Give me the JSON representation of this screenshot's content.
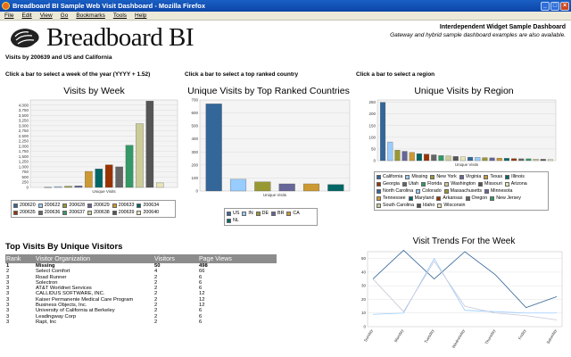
{
  "window": {
    "title": "Breadboard BI Sample Web Visit Dashboard - Mozilla Firefox"
  },
  "menu": [
    "File",
    "Edit",
    "View",
    "Go",
    "Bookmarks",
    "Tools",
    "Help"
  ],
  "header": {
    "logo_text": "Breadboard BI",
    "dashboard_title": "Interdependent Widget Sample Dashboard",
    "dashboard_subtitle": "Gateway and hybrid sample dashboard examples are also available."
  },
  "context_line": "Visits by 200639 and US and California",
  "instructions": {
    "week": "Click a bar to select a week of the year (YYYY + 1.52)",
    "country": "Click a bar to select a top ranked country",
    "region": "Click a bar to select a region"
  },
  "colors": {
    "blue": "#336699",
    "lightblue": "#99ccff",
    "olive": "#999933",
    "purple": "#666699",
    "orange": "#cc9933",
    "teal": "#006666",
    "darkorange": "#993300",
    "gray": "#666666",
    "green": "#339966",
    "darkred": "#993300",
    "lightgreen": "#cccc99",
    "darkgray": "#555555"
  },
  "chart_data": [
    {
      "type": "bar",
      "title": "Visits by Week",
      "xlabel": "Unique Visits",
      "ylabel": "",
      "ylim": [
        0,
        4250
      ],
      "yticks": [
        "0",
        "250",
        "500",
        "750",
        "1,000",
        "1,250",
        "1,500",
        "1,750",
        "2,000",
        "2,250",
        "2,500",
        "2,750",
        "3,000",
        "3,250",
        "3,500",
        "3,750",
        "4,000"
      ],
      "categories": [
        "200620",
        "200622",
        "200628",
        "200629",
        "200633",
        "200634",
        "200635",
        "200636",
        "200637",
        "200638",
        "200639",
        "200640"
      ],
      "values": [
        10,
        40,
        60,
        80,
        780,
        900,
        1100,
        1000,
        2050,
        3100,
        4200,
        220
      ],
      "colors": [
        "#336699",
        "#99ccff",
        "#999933",
        "#666699",
        "#cc9933",
        "#006666",
        "#993300",
        "#666666",
        "#339966",
        "#cccc99",
        "#555555",
        "#e8e4b8"
      ],
      "legend": "bottom"
    },
    {
      "type": "bar",
      "title": "Unique Visits by Top Ranked Countries",
      "xlabel": "Unique Visits",
      "ylabel": "",
      "ylim": [
        0,
        700
      ],
      "yticks": [
        "0",
        "100",
        "200",
        "300",
        "400",
        "500",
        "600",
        "700"
      ],
      "categories": [
        "US",
        "IN",
        "DE",
        "BR",
        "CA",
        "NL"
      ],
      "values": [
        670,
        90,
        70,
        55,
        55,
        50
      ],
      "colors": [
        "#336699",
        "#99ccff",
        "#999933",
        "#666699",
        "#cc9933",
        "#006666"
      ],
      "legend": "bottom"
    },
    {
      "type": "bar",
      "title": "Unique Visits by Region",
      "xlabel": "Unique Visits",
      "ylabel": "",
      "ylim": [
        0,
        260
      ],
      "yticks": [
        "0",
        "50",
        "100",
        "150",
        "200",
        "250"
      ],
      "categories": [
        "California",
        "Missing",
        "New York",
        "Virginia",
        "Texas",
        "Illinois",
        "Georgia",
        "Utah",
        "Florida",
        "Washington",
        "Missouri",
        "Arizona",
        "North Carolina",
        "Colorado",
        "Massachusetts",
        "Minnesota",
        "Tennessee",
        "Maryland",
        "Arkansas",
        "Oregon",
        "New Jersey",
        "South Carolina",
        "Idaho",
        "Wisconsin"
      ],
      "values": [
        250,
        80,
        45,
        40,
        35,
        30,
        28,
        25,
        22,
        20,
        18,
        16,
        15,
        14,
        13,
        12,
        11,
        10,
        9,
        8,
        8,
        7,
        6,
        5
      ],
      "colors": [
        "#336699",
        "#99ccff",
        "#999933",
        "#666699",
        "#cc9933",
        "#006666",
        "#993300",
        "#666666",
        "#339966",
        "#cccc99",
        "#555555",
        "#e8e4b8",
        "#336699",
        "#99ccff",
        "#999933",
        "#666699",
        "#cc9933",
        "#006666",
        "#993300",
        "#666666",
        "#339966",
        "#cccc99",
        "#555555",
        "#e8e4b8"
      ],
      "legend": "bottom"
    },
    {
      "type": "line",
      "title": "Visit Trends For the Week",
      "ylim": [
        0,
        55
      ],
      "yticks": [
        "0",
        "10",
        "20",
        "30",
        "40",
        "50"
      ],
      "categories": [
        "Sunday",
        "Monday",
        "Tuesday",
        "Wednesday",
        "Thursday",
        "Friday",
        "Saturday"
      ],
      "series": [
        {
          "values": [
            35,
            56,
            35,
            55,
            38,
            14,
            22
          ],
          "color": "#336699"
        },
        {
          "values": [
            9,
            10,
            50,
            12,
            11,
            10,
            10
          ],
          "color": "#99ccff"
        },
        {
          "values": [
            35,
            11,
            48,
            15,
            10,
            8,
            5
          ],
          "color": "#c8c8d8"
        }
      ]
    }
  ],
  "visitors_table": {
    "title": "Top Visits By Unique Visitors",
    "columns": [
      "Rank",
      "Visitor Organization",
      "Visitors",
      "Page Views"
    ],
    "rows": [
      [
        "1",
        "Missing",
        "50",
        "498"
      ],
      [
        "2",
        "Select Comfort",
        "4",
        "66"
      ],
      [
        "3",
        "Road Runner",
        "2",
        "6"
      ],
      [
        "3",
        "Solectron",
        "2",
        "6"
      ],
      [
        "3",
        "AT&T Worldnet Services",
        "2",
        "6"
      ],
      [
        "3",
        "CALLIDUS SOFTWARE, INC.",
        "2",
        "12"
      ],
      [
        "3",
        "Kaiser Permanente Medical Care Program",
        "2",
        "12"
      ],
      [
        "3",
        "Business Objects, Inc.",
        "2",
        "12"
      ],
      [
        "3",
        "University of California at Berkeley",
        "2",
        "6"
      ],
      [
        "3",
        "Leadingway Corp",
        "2",
        "6"
      ],
      [
        "3",
        "Rapt, Inc",
        "2",
        "6"
      ]
    ]
  }
}
